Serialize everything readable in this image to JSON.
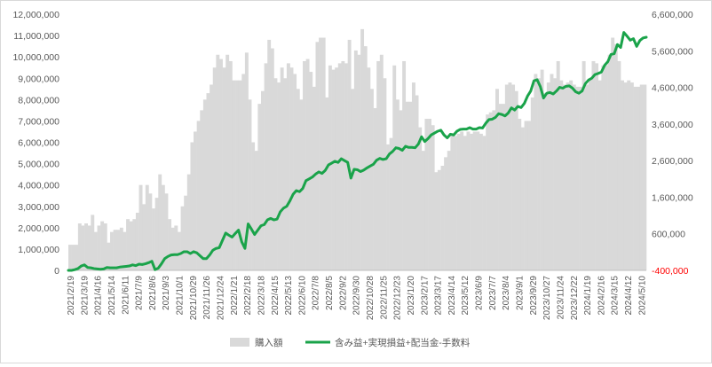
{
  "chart_data": {
    "type": "bar+line",
    "title": "",
    "x_tick_labels": [
      "2021/2/19",
      "2021/3/19",
      "2021/4/16",
      "2021/5/14",
      "2021/6/11",
      "2021/7/9",
      "2021/8/6",
      "2021/9/3",
      "2021/10/1",
      "2021/10/29",
      "2021/11/26",
      "2021/12/24",
      "2022/1/21",
      "2022/2/18",
      "2022/3/18",
      "2022/4/15",
      "2022/5/13",
      "2022/6/10",
      "2022/7/8",
      "2022/8/5",
      "2022/9/2",
      "2022/9/30",
      "2022/10/28",
      "2022/11/25",
      "2022/12/23",
      "2023/1/20",
      "2023/2/17",
      "2023/3/17",
      "2023/4/14",
      "2023/5/12",
      "2023/6/9",
      "2023/7/7",
      "2023/8/4",
      "2023/9/1",
      "2023/9/29",
      "2023/10/27",
      "2023/11/24",
      "2023/12/22",
      "2024/1/19",
      "2024/2/16",
      "2024/3/15",
      "2024/4/12",
      "2024/5/10"
    ],
    "y_left": {
      "min": 0,
      "max": 12000000,
      "step": 1000000,
      "tick_labels": [
        "0",
        "1,000,000",
        "2,000,000",
        "3,000,000",
        "4,000,000",
        "5,000,000",
        "6,000,000",
        "7,000,000",
        "8,000,000",
        "9,000,000",
        "10,000,000",
        "11,000,000",
        "12,000,000"
      ]
    },
    "y_right": {
      "min": -400000,
      "max": 6600000,
      "step": 1000000,
      "tick_labels": [
        "-400,000",
        "600,000",
        "1,600,000",
        "2,600,000",
        "3,600,000",
        "4,600,000",
        "5,600,000",
        "6,600,000"
      ],
      "negative_color": "#ff0000"
    },
    "series": [
      {
        "name": "購入額",
        "kind": "bar",
        "axis": "left",
        "color": "#d9d9d9",
        "values": [
          1200000,
          1200000,
          1200000,
          2200000,
          2100000,
          2200000,
          2100000,
          2600000,
          1800000,
          2100000,
          2300000,
          2200000,
          1300000,
          1800000,
          1900000,
          1900000,
          2000000,
          1800000,
          2400000,
          2300000,
          2400000,
          2700000,
          4000000,
          3100000,
          4000000,
          3600000,
          2900000,
          3400000,
          4500000,
          4000000,
          3600000,
          2400000,
          2000000,
          2100000,
          1800000,
          3000000,
          3500000,
          4500000,
          6000000,
          6500000,
          7000000,
          7500000,
          8000000,
          8300000,
          8700000,
          9500000,
          10100000,
          9900000,
          9500000,
          10100000,
          9800000,
          8900000,
          8900000,
          8900000,
          9200000,
          10200000,
          8000000,
          6000000,
          5600000,
          7800000,
          8400000,
          9700000,
          10800000,
          10400000,
          9000000,
          8800000,
          9500000,
          9000000,
          9700000,
          9500000,
          9200000,
          8500000,
          8000000,
          9800000,
          9900000,
          9300000,
          8600000,
          10700000,
          10900000,
          10900000,
          8100000,
          9600000,
          9400000,
          9500000,
          9700000,
          9800000,
          9700000,
          10800000,
          8500000,
          10300000,
          10100000,
          11300000,
          10500000,
          9500000,
          8500000,
          7600000,
          9800000,
          10100000,
          9000000,
          5900000,
          6200000,
          9600000,
          8000000,
          7500000,
          9800000,
          7900000,
          7900000,
          8800000,
          8200000,
          6700000,
          5600000,
          7100000,
          7100000,
          6800000,
          4600000,
          4700000,
          4900000,
          5300000,
          5600000,
          6300000,
          6300000,
          6400000,
          6500000,
          6300000,
          6500000,
          6400000,
          6500000,
          6500000,
          6400000,
          6300000,
          7300000,
          7400000,
          7500000,
          8500000,
          7800000,
          7800000,
          8700000,
          8800000,
          8700000,
          8400000,
          7100000,
          6700000,
          7000000,
          7000000,
          8100000,
          9200000,
          9000000,
          9400000,
          8300000,
          8800000,
          9200000,
          9000000,
          9800000,
          8900000,
          8700000,
          8800000,
          8900000,
          8700000,
          8600000,
          8600000,
          9800000,
          8700000,
          9000000,
          9800000,
          9700000,
          8900000,
          9600000,
          9600000,
          10100000,
          10900000,
          10600000,
          9800000,
          8900000,
          8800000,
          8900000,
          8800000,
          8600000,
          8600000,
          8700000,
          8700000
        ]
      },
      {
        "name": "含み益+実現損益+配当金-手数料",
        "kind": "line",
        "axis": "right",
        "color": "#1aa34a",
        "values": [
          -400000,
          -400000,
          -380000,
          -350000,
          -280000,
          -250000,
          -320000,
          -330000,
          -350000,
          -360000,
          -370000,
          -360000,
          -320000,
          -330000,
          -330000,
          -330000,
          -310000,
          -300000,
          -290000,
          -280000,
          -250000,
          -270000,
          -230000,
          -240000,
          -220000,
          -190000,
          -150000,
          -380000,
          -340000,
          -220000,
          -80000,
          -20000,
          20000,
          30000,
          30000,
          60000,
          110000,
          110000,
          60000,
          110000,
          80000,
          0,
          -80000,
          -80000,
          20000,
          150000,
          200000,
          220000,
          420000,
          620000,
          560000,
          510000,
          610000,
          700000,
          380000,
          200000,
          870000,
          730000,
          580000,
          700000,
          820000,
          850000,
          980000,
          1020000,
          980000,
          1000000,
          1200000,
          1300000,
          1350000,
          1500000,
          1680000,
          1780000,
          1750000,
          1840000,
          2050000,
          2100000,
          2150000,
          2230000,
          2290000,
          2250000,
          2330000,
          2480000,
          2530000,
          2580000,
          2550000,
          2650000,
          2600000,
          2550000,
          2120000,
          2360000,
          2350000,
          2300000,
          2340000,
          2400000,
          2450000,
          2500000,
          2610000,
          2660000,
          2630000,
          2650000,
          2780000,
          2850000,
          2950000,
          2930000,
          2880000,
          2990000,
          2960000,
          2960000,
          2950000,
          3050000,
          3250000,
          3120000,
          3200000,
          3300000,
          3350000,
          3400000,
          3430000,
          3300000,
          3220000,
          3320000,
          3300000,
          3400000,
          3450000,
          3460000,
          3460000,
          3500000,
          3460000,
          3460000,
          3500000,
          3490000,
          3620000,
          3720000,
          3730000,
          3780000,
          3880000,
          3860000,
          3820000,
          3900000,
          4040000,
          3980000,
          4080000,
          4050000,
          4160000,
          4360000,
          4500000,
          4780000,
          4810000,
          4620000,
          4310000,
          4440000,
          4460000,
          4420000,
          4500000,
          4600000,
          4580000,
          4630000,
          4640000,
          4580000,
          4480000,
          4440000,
          4500000,
          4700000,
          4800000,
          4850000,
          4950000,
          4980000,
          5020000,
          5200000,
          5300000,
          5500000,
          5520000,
          5770000,
          5690000,
          6100000,
          6000000,
          5890000,
          5930000,
          5720000,
          5880000,
          5950000,
          5970000
        ]
      }
    ],
    "legend_position": "bottom",
    "grid": false
  }
}
